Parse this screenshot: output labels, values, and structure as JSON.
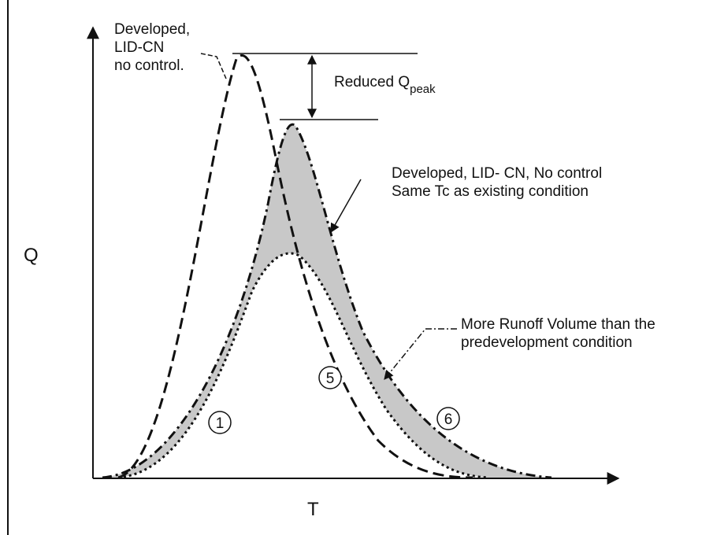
{
  "axes": {
    "y_label": "Q",
    "x_label": "T"
  },
  "annotations": {
    "developed_no_control": [
      "Developed,",
      "LID-CN",
      "no control."
    ],
    "reduced_peak": {
      "text": "Reduced Q",
      "subscript": "peak"
    },
    "same_tc": [
      "Developed, LID- CN, No control",
      "Same Tc as existing condition"
    ],
    "more_runoff": [
      "More Runoff  Volume than the",
      "predevelopment condition"
    ]
  },
  "curve_labels": [
    "1",
    "5",
    "6"
  ]
}
